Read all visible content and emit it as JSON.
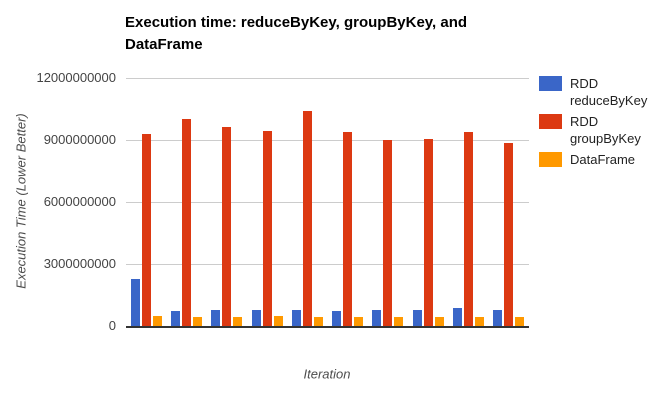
{
  "chart_data": {
    "type": "bar",
    "title": "Execution time: reduceByKey, groupByKey, and DataFrame",
    "xlabel": "Iteration",
    "ylabel": "Execution Time (Lower Better)",
    "x": [
      1,
      2,
      3,
      4,
      5,
      6,
      7,
      8,
      9,
      10
    ],
    "x_tick_labels_visible": false,
    "ylim": [
      0,
      12000000000
    ],
    "yticks": [
      0,
      3000000000,
      6000000000,
      9000000000,
      12000000000
    ],
    "grid": true,
    "legend_position": "right",
    "colors": {
      "grid": "#cccccc",
      "baseline": "#333333",
      "tick_label": "#444444",
      "axis_title": "#4d4d4d"
    },
    "series": [
      {
        "name": "RDD reduceByKey",
        "color": "#3A66C8",
        "values": [
          2280000000,
          750000000,
          790000000,
          780000000,
          760000000,
          740000000,
          760000000,
          790000000,
          860000000,
          790000000
        ]
      },
      {
        "name": "RDD groupByKey",
        "color": "#DC3912",
        "values": [
          9300000000,
          10000000000,
          9620000000,
          9450000000,
          10400000000,
          9380000000,
          9000000000,
          9050000000,
          9400000000,
          8850000000
        ]
      },
      {
        "name": "DataFrame",
        "color": "#FF9900",
        "values": [
          480000000,
          440000000,
          450000000,
          480000000,
          420000000,
          440000000,
          450000000,
          450000000,
          450000000,
          440000000
        ]
      }
    ]
  }
}
